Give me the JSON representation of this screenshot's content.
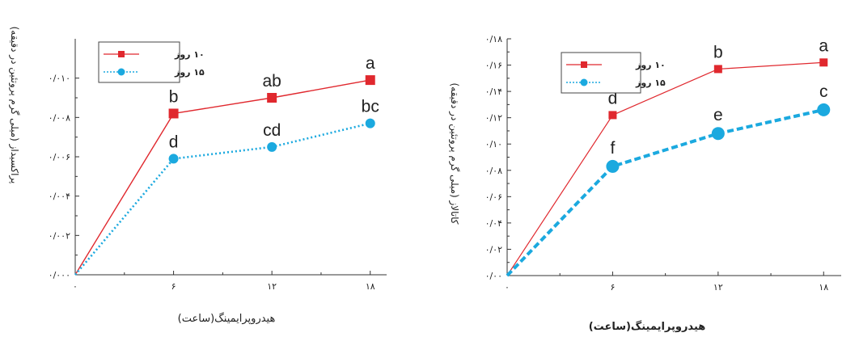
{
  "chart_data": [
    {
      "type": "line",
      "title": "",
      "xlabel": "هیدروپرایمینگ(ساعت)",
      "ylabel": "پراکسیداز (میلی گرم پروتئین در دقیقه)",
      "x": [
        0,
        6,
        12,
        18
      ],
      "x_tick_labels": [
        "۰",
        "۶",
        "۱۲",
        "۱۸"
      ],
      "ylim": [
        0,
        0.012
      ],
      "y_ticks": [
        0,
        0.002,
        0.004,
        0.006,
        0.008,
        0.01
      ],
      "y_tick_labels": [
        "۰/۰۰۰",
        "۰/۰۰۲",
        "۰/۰۰۴",
        "۰/۰۰۶",
        "۰/۰۰۸",
        "۰/۰۱۰"
      ],
      "legend_position": "top-left",
      "series": [
        {
          "name": "۱۰ روز",
          "values": [
            0,
            0.0082,
            0.009,
            0.0099
          ],
          "labels": [
            "",
            "b",
            "ab",
            "a"
          ],
          "color": "#e0282e",
          "marker": "square",
          "line": "solid"
        },
        {
          "name": "۱۵ روز",
          "values": [
            0,
            0.0059,
            0.0065,
            0.0077
          ],
          "labels": [
            "",
            "d",
            "cd",
            "bc"
          ],
          "color": "#1ba9df",
          "marker": "circle",
          "line": "dotted"
        }
      ]
    },
    {
      "type": "line",
      "title": "",
      "xlabel": "هیدروپرایمینگ(ساعت)",
      "ylabel": "کاتالاز (میلی گرم پروتئین در دقیقه)",
      "x": [
        0,
        6,
        12,
        18
      ],
      "x_tick_labels": [
        "۰",
        "۶",
        "۱۲",
        "۱۸"
      ],
      "ylim": [
        0,
        0.18
      ],
      "y_ticks": [
        0,
        0.02,
        0.04,
        0.06,
        0.08,
        0.1,
        0.12,
        0.14,
        0.16,
        0.18
      ],
      "y_tick_labels": [
        "۰/۰۰",
        "۰/۰۲",
        "۰/۰۴",
        "۰/۰۶",
        "۰/۰۸",
        "۰/۱۰",
        "۰/۱۲",
        "۰/۱۴",
        "۰/۱۶",
        "۰/۱۸"
      ],
      "legend_position": "top-left",
      "series": [
        {
          "name": "۱۰ روز",
          "values": [
            0,
            0.122,
            0.157,
            0.162
          ],
          "labels": [
            "",
            "d",
            "b",
            "a"
          ],
          "color": "#e0282e",
          "marker": "square",
          "line": "solid"
        },
        {
          "name": "۱۵ روز",
          "values": [
            0,
            0.083,
            0.108,
            0.126
          ],
          "labels": [
            "",
            "f",
            "e",
            "c"
          ],
          "color": "#1ba9df",
          "marker": "circle",
          "line": "dashed"
        }
      ]
    }
  ]
}
